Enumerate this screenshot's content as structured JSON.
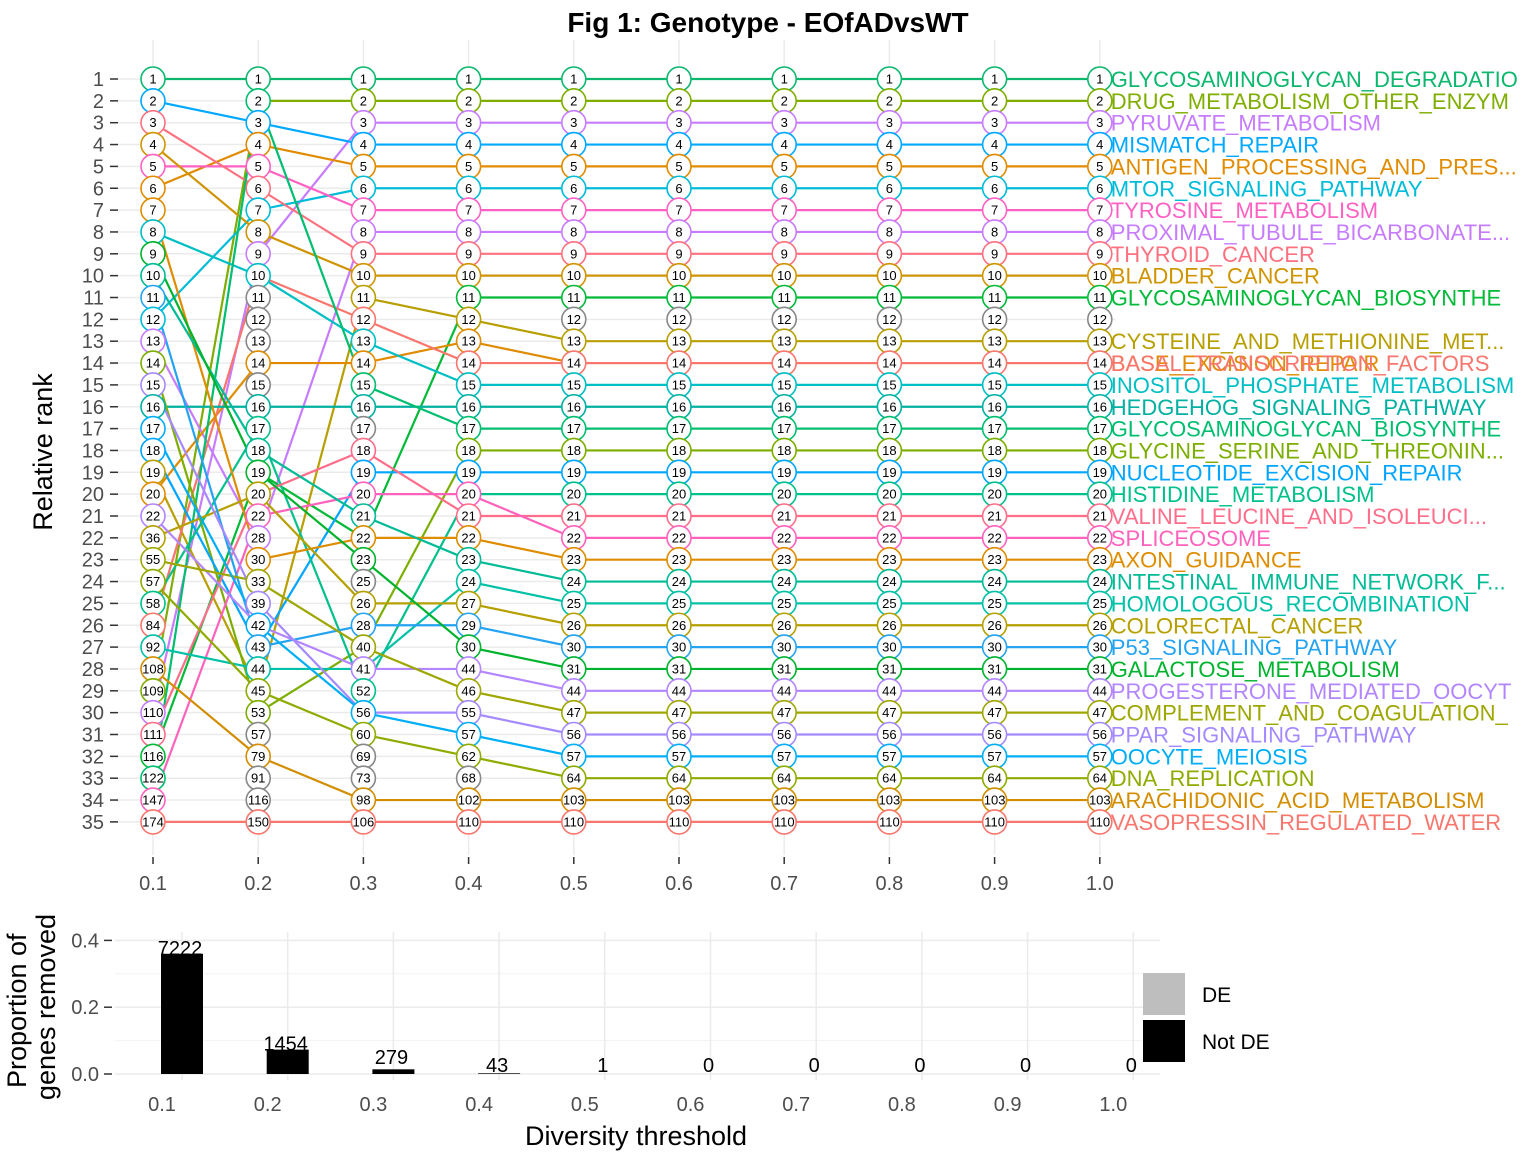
{
  "chart_data": [
    {
      "type": "line",
      "title": "Fig 1: Genotype - EOfADvsWT",
      "xlabel": "",
      "ylabel": "Relative rank",
      "x": [
        0.1,
        0.2,
        0.3,
        0.4,
        0.5,
        0.6,
        0.7,
        0.8,
        0.9,
        1.0
      ],
      "x_ticks": [
        "0.1",
        "0.2",
        "0.3",
        "0.4",
        "0.5",
        "0.6",
        "0.7",
        "0.8",
        "0.9",
        "1.0"
      ],
      "y_ticks": [
        "1",
        "2",
        "3",
        "4",
        "5",
        "6",
        "7",
        "8",
        "9",
        "10",
        "11",
        "12",
        "13",
        "14",
        "15",
        "16",
        "17",
        "18",
        "19",
        "20",
        "21",
        "22",
        "23",
        "24",
        "25",
        "26",
        "27",
        "28",
        "29",
        "30",
        "31",
        "32",
        "33",
        "34",
        "35"
      ],
      "ylim": [
        35,
        1
      ],
      "grid": true,
      "node_labels": [
        [
          "1",
          "2",
          "3",
          "4",
          "5",
          "6",
          "7",
          "8",
          "9",
          "10",
          "11",
          "12",
          "13",
          "14",
          "15",
          "16",
          "17",
          "18",
          "19",
          "20",
          "22",
          "36",
          "55",
          "57",
          "58",
          "84",
          "92",
          "108",
          "109",
          "110",
          "111",
          "116",
          "122",
          "147",
          "174"
        ],
        [
          "1",
          "2",
          "3",
          "4",
          "5",
          "6",
          "7",
          "8",
          "9",
          "10",
          "11",
          "12",
          "13",
          "14",
          "15",
          "16",
          "17",
          "18",
          "19",
          "20",
          "22",
          "28",
          "30",
          "33",
          "39",
          "42",
          "43",
          "44",
          "45",
          "53",
          "57",
          "79",
          "91",
          "116",
          "150"
        ],
        [
          "1",
          "2",
          "3",
          "4",
          "5",
          "6",
          "7",
          "8",
          "9",
          "10",
          "11",
          "12",
          "13",
          "14",
          "15",
          "16",
          "17",
          "18",
          "19",
          "20",
          "21",
          "22",
          "23",
          "25",
          "26",
          "28",
          "40",
          "41",
          "52",
          "56",
          "60",
          "69",
          "73",
          "98",
          "106"
        ],
        [
          "1",
          "2",
          "3",
          "4",
          "5",
          "6",
          "7",
          "8",
          "9",
          "10",
          "11",
          "12",
          "13",
          "14",
          "15",
          "16",
          "17",
          "18",
          "19",
          "20",
          "21",
          "22",
          "23",
          "24",
          "27",
          "29",
          "30",
          "44",
          "46",
          "55",
          "57",
          "62",
          "68",
          "102",
          "110"
        ],
        [
          "1",
          "2",
          "3",
          "4",
          "5",
          "6",
          "7",
          "8",
          "9",
          "10",
          "11",
          "12",
          "13",
          "14",
          "15",
          "16",
          "17",
          "18",
          "19",
          "20",
          "21",
          "22",
          "23",
          "24",
          "25",
          "26",
          "30",
          "31",
          "44",
          "47",
          "56",
          "57",
          "64",
          "103",
          "110"
        ],
        [
          "1",
          "2",
          "3",
          "4",
          "5",
          "6",
          "7",
          "8",
          "9",
          "10",
          "11",
          "12",
          "13",
          "14",
          "15",
          "16",
          "17",
          "18",
          "19",
          "20",
          "21",
          "22",
          "23",
          "24",
          "25",
          "26",
          "30",
          "31",
          "44",
          "47",
          "56",
          "57",
          "64",
          "103",
          "110"
        ],
        [
          "1",
          "2",
          "3",
          "4",
          "5",
          "6",
          "7",
          "8",
          "9",
          "10",
          "11",
          "12",
          "13",
          "14",
          "15",
          "16",
          "17",
          "18",
          "19",
          "20",
          "21",
          "22",
          "23",
          "24",
          "25",
          "26",
          "30",
          "31",
          "44",
          "47",
          "56",
          "57",
          "64",
          "103",
          "110"
        ],
        [
          "1",
          "2",
          "3",
          "4",
          "5",
          "6",
          "7",
          "8",
          "9",
          "10",
          "11",
          "12",
          "13",
          "14",
          "15",
          "16",
          "17",
          "18",
          "19",
          "20",
          "21",
          "22",
          "23",
          "24",
          "25",
          "26",
          "30",
          "31",
          "44",
          "47",
          "56",
          "57",
          "64",
          "103",
          "110"
        ],
        [
          "1",
          "2",
          "3",
          "4",
          "5",
          "6",
          "7",
          "8",
          "9",
          "10",
          "11",
          "12",
          "13",
          "14",
          "15",
          "16",
          "17",
          "18",
          "19",
          "20",
          "21",
          "22",
          "23",
          "24",
          "25",
          "26",
          "30",
          "31",
          "44",
          "47",
          "56",
          "57",
          "64",
          "103",
          "110"
        ],
        [
          "1",
          "2",
          "3",
          "4",
          "5",
          "6",
          "7",
          "8",
          "9",
          "10",
          "11",
          "12",
          "13",
          "14",
          "15",
          "16",
          "17",
          "18",
          "19",
          "20",
          "21",
          "22",
          "23",
          "24",
          "25",
          "26",
          "30",
          "31",
          "44",
          "47",
          "56",
          "57",
          "64",
          "103",
          "110"
        ]
      ],
      "series": [
        {
          "name": "GLYCOSAMINOGLYCAN_DEGRADATIO",
          "color": "#0db76e",
          "ranks": [
            1,
            1,
            1,
            1,
            1,
            1,
            1,
            1,
            1,
            1
          ]
        },
        {
          "name": "DRUG_METABOLISM_OTHER_ENZYM",
          "color": "#7fad00",
          "ranks": [
            29,
            2,
            2,
            2,
            2,
            2,
            2,
            2,
            2,
            2
          ]
        },
        {
          "name": "PYRUVATE_METABOLISM",
          "color": "#c77cff",
          "ranks": [
            30,
            9,
            3,
            3,
            3,
            3,
            3,
            3,
            3,
            3
          ]
        },
        {
          "name": "MISMATCH_REPAIR",
          "color": "#00a9ff",
          "ranks": [
            2,
            3,
            4,
            4,
            4,
            4,
            4,
            4,
            4,
            4
          ]
        },
        {
          "name": "ANTIGEN_PROCESSING_AND_PRES...",
          "color": "#e08b00",
          "ranks": [
            6,
            4,
            5,
            5,
            5,
            5,
            5,
            5,
            5,
            5
          ]
        },
        {
          "name": "MTOR_SIGNALING_PATHWAY",
          "color": "#00bcd8",
          "ranks": [
            12,
            7,
            6,
            6,
            6,
            6,
            6,
            6,
            6,
            6
          ]
        },
        {
          "name": "TYROSINE_METABOLISM",
          "color": "#ff61c3",
          "ranks": [
            5,
            5,
            7,
            7,
            7,
            7,
            7,
            7,
            7,
            7
          ]
        },
        {
          "name": "PROXIMAL_TUBULE_BICARBONATE...",
          "color": "#c77cff",
          "ranks": [
            13,
            22,
            8,
            8,
            8,
            8,
            8,
            8,
            8,
            8
          ]
        },
        {
          "name": "THYROID_CANCER",
          "color": "#fc717f",
          "ranks": [
            3,
            6,
            9,
            9,
            9,
            9,
            9,
            9,
            9,
            9
          ]
        },
        {
          "name": "BLADDER_CANCER",
          "color": "#cf9400",
          "ranks": [
            4,
            8,
            10,
            10,
            10,
            10,
            10,
            10,
            10,
            10
          ]
        },
        {
          "name": "GLYCOSAMINOGLYCAN_BIOSYNTHE",
          "color": "#00ba38",
          "ranks": [
            32,
            19,
            22,
            11,
            11,
            11,
            11,
            11,
            11,
            11
          ]
        },
        {
          "name": "CYSTEINE_AND_METHIONINE_MET...",
          "color": "#b79f00",
          "ranks": [
            19,
            29,
            11,
            12,
            13,
            13,
            13,
            13,
            13,
            13
          ]
        },
        {
          "name": "BASE_EXCISION_REPAIR",
          "color": "#e08b00",
          "ranks": [
            20,
            14,
            14,
            13,
            14,
            14,
            14,
            14,
            14,
            14
          ]
        },
        {
          "name": "BASAL_TRANSCRIPTION_FACTORS",
          "color": "#f8766d",
          "ranks": [
            26,
            10,
            12,
            14,
            14,
            14,
            14,
            14,
            14,
            14
          ]
        },
        {
          "name": "INOSITOL_PHOSPHATE_METABOLISM",
          "color": "#00bfc4",
          "ranks": [
            8,
            10,
            13,
            15,
            15,
            15,
            15,
            15,
            15,
            15
          ]
        },
        {
          "name": "HEDGEHOG_SIGNALING_PATHWAY",
          "color": "#00b0a0",
          "ranks": [
            16,
            16,
            16,
            16,
            16,
            16,
            16,
            16,
            16,
            16
          ]
        },
        {
          "name": "GLYCOSAMINOGLYCAN_BIOSYNTHE",
          "color": "#00be70",
          "ranks": [
            33,
            2,
            15,
            17,
            17,
            17,
            17,
            17,
            17,
            17
          ]
        },
        {
          "name": "GLYCINE_SERINE_AND_THREONIN...",
          "color": "#7cae00",
          "ranks": [
            14,
            30,
            27,
            18,
            18,
            18,
            18,
            18,
            18,
            18
          ]
        },
        {
          "name": "NUCLEOTIDE_EXCISION_REPAIR",
          "color": "#00a5ff",
          "ranks": [
            18,
            27,
            19,
            19,
            19,
            19,
            19,
            19,
            19,
            19
          ]
        },
        {
          "name": "HISTIDINE_METABOLISM",
          "color": "#00c08b",
          "ranks": [
            25,
            17,
            29,
            20,
            20,
            20,
            20,
            20,
            20,
            20
          ]
        },
        {
          "name": "VALINE_LEUCINE_AND_ISOLEUCI...",
          "color": "#fe6e8a",
          "ranks": [
            31,
            20,
            18,
            21,
            21,
            21,
            21,
            21,
            21,
            21
          ]
        },
        {
          "name": "SPLICEOSOME",
          "color": "#ff62bc",
          "ranks": [
            34,
            21,
            20,
            20,
            22,
            22,
            22,
            22,
            22,
            22
          ]
        },
        {
          "name": "AXON_GUIDANCE",
          "color": "#de8c00",
          "ranks": [
            7,
            23,
            22,
            22,
            23,
            23,
            23,
            23,
            23,
            23
          ]
        },
        {
          "name": "INTESTINAL_IMMUNE_NETWORK_F...",
          "color": "#00bb95",
          "ranks": [
            10,
            18,
            21,
            23,
            24,
            24,
            24,
            24,
            24,
            24
          ]
        },
        {
          "name": "HOMOLOGOUS_RECOMBINATION",
          "color": "#00c1a7",
          "ranks": [
            27,
            28,
            28,
            24,
            25,
            25,
            25,
            25,
            25,
            25
          ]
        },
        {
          "name": "COLORECTAL_CANCER",
          "color": "#b5a000",
          "ranks": [
            22,
            20,
            25,
            25,
            26,
            26,
            26,
            26,
            26,
            26
          ]
        },
        {
          "name": "P53_SIGNALING_PATHWAY",
          "color": "#24a3f0",
          "ranks": [
            11,
            27,
            26,
            26,
            27,
            27,
            27,
            27,
            27,
            27
          ]
        },
        {
          "name": "GALACTOSE_METABOLISM",
          "color": "#00b32e",
          "ranks": [
            9,
            19,
            23,
            27,
            28,
            28,
            28,
            28,
            28,
            28
          ]
        },
        {
          "name": "PROGESTERONE_MEDIATED_OOCYT",
          "color": "#b385ff",
          "ranks": [
            21,
            26,
            28,
            28,
            29,
            29,
            29,
            29,
            29,
            29
          ]
        },
        {
          "name": "COMPLEMENT_AND_COAGULATION_",
          "color": "#9da700",
          "ranks": [
            23,
            24,
            27,
            29,
            30,
            30,
            30,
            30,
            30,
            30
          ]
        },
        {
          "name": "PPAR_SIGNALING_PATHWAY",
          "color": "#a58aff",
          "ranks": [
            15,
            25,
            30,
            30,
            31,
            31,
            31,
            31,
            31,
            31
          ]
        },
        {
          "name": "OOCYTE_MEIOSIS",
          "color": "#00aef5",
          "ranks": [
            17,
            26,
            30,
            31,
            32,
            32,
            32,
            32,
            32,
            32
          ]
        },
        {
          "name": "DNA_REPLICATION",
          "color": "#8fab00",
          "ranks": [
            24,
            29,
            31,
            32,
            33,
            33,
            33,
            33,
            33,
            33
          ]
        },
        {
          "name": "ARACHIDONIC_ACID_METABOLISM",
          "color": "#d38d00",
          "ranks": [
            28,
            32,
            34,
            34,
            34,
            34,
            34,
            34,
            34,
            34
          ]
        },
        {
          "name": "VASOPRESSIN_REGULATED_WATER",
          "color": "#f8766d",
          "ranks": [
            35,
            35,
            35,
            35,
            35,
            35,
            35,
            35,
            35,
            35
          ]
        }
      ]
    },
    {
      "type": "bar",
      "xlabel": "Diversity threshold",
      "ylabel": "Proportion of\ngenes removed",
      "categories": [
        "0.1",
        "0.2",
        "0.3",
        "0.4",
        "0.5",
        "0.6",
        "0.7",
        "0.8",
        "0.9",
        "1.0"
      ],
      "ylim": [
        0,
        0.45
      ],
      "y_ticks": [
        "0.0",
        "0.2",
        "0.4"
      ],
      "series": [
        {
          "name": "DE",
          "color": "#bebebe",
          "values": [
            0,
            0,
            0,
            0,
            0,
            0,
            0,
            0,
            0,
            0
          ]
        },
        {
          "name": "Not DE",
          "color": "#000000",
          "values": [
            0.36,
            0.073,
            0.014,
            0.002,
            0.0,
            0.0,
            0.0,
            0.0,
            0.0,
            0.0
          ]
        }
      ],
      "data_labels": [
        "7222",
        "1454",
        "279",
        "43",
        "1",
        "0",
        "0",
        "0",
        "0",
        "0"
      ],
      "legend": {
        "position": "right",
        "items": [
          "DE",
          "Not DE"
        ]
      }
    }
  ]
}
